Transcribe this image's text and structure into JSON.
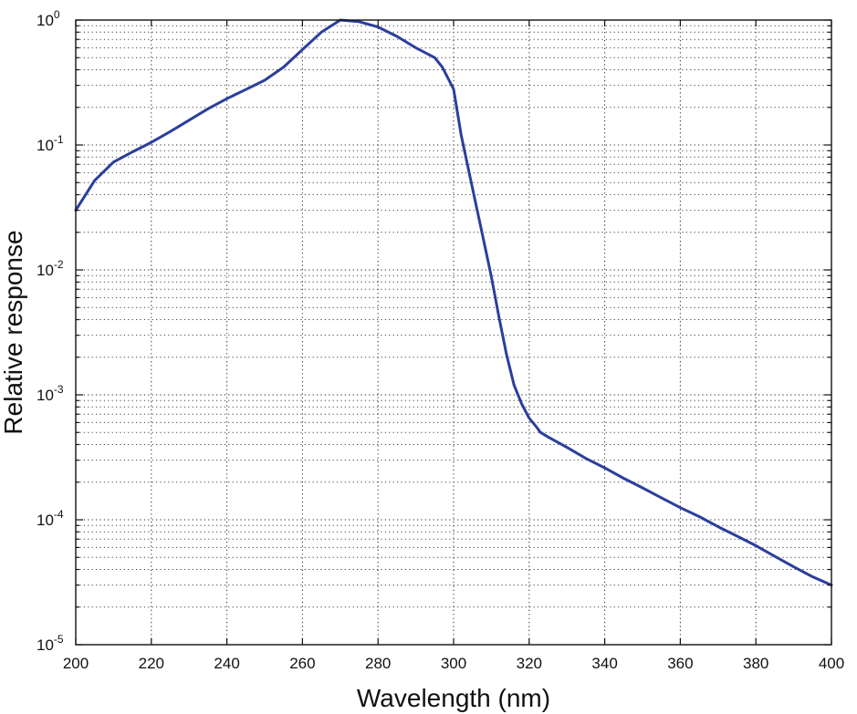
{
  "chart_data": {
    "type": "line",
    "title": "",
    "xlabel": "Wavelength (nm)",
    "ylabel": "Relative response",
    "xlim": [
      200,
      400
    ],
    "ylim": [
      1e-05,
      1
    ],
    "yscale": "log",
    "grid": true,
    "x_ticks": [
      {
        "value": 200,
        "label": "200"
      },
      {
        "value": 220,
        "label": "220"
      },
      {
        "value": 240,
        "label": "240"
      },
      {
        "value": 260,
        "label": "260"
      },
      {
        "value": 280,
        "label": "280"
      },
      {
        "value": 300,
        "label": "300"
      },
      {
        "value": 320,
        "label": "320"
      },
      {
        "value": 340,
        "label": "340"
      },
      {
        "value": 360,
        "label": "360"
      },
      {
        "value": 380,
        "label": "380"
      },
      {
        "value": 400,
        "label": "400"
      }
    ],
    "y_ticks": [
      {
        "value": 1,
        "base": "10",
        "exp": "0"
      },
      {
        "value": 0.1,
        "base": "10",
        "exp": "-1"
      },
      {
        "value": 0.01,
        "base": "10",
        "exp": "-2"
      },
      {
        "value": 0.001,
        "base": "10",
        "exp": "-3"
      },
      {
        "value": 0.0001,
        "base": "10",
        "exp": "-4"
      },
      {
        "value": 1e-05,
        "base": "10",
        "exp": "-5"
      }
    ],
    "series": [
      {
        "color": "#2a3f9c",
        "x": [
          200,
          205,
          210,
          215,
          220,
          225,
          230,
          235,
          240,
          245,
          250,
          255,
          260,
          265,
          270,
          275,
          280,
          285,
          290,
          295,
          297,
          300,
          302,
          305,
          308,
          310,
          312,
          314,
          316,
          318,
          320,
          322,
          323,
          325,
          330,
          335,
          340,
          345,
          350,
          355,
          360,
          365,
          370,
          375,
          380,
          385,
          390,
          395,
          400
        ],
        "y": [
          0.03,
          0.052,
          0.073,
          0.088,
          0.105,
          0.128,
          0.158,
          0.195,
          0.235,
          0.278,
          0.33,
          0.42,
          0.58,
          0.8,
          1.0,
          0.97,
          0.88,
          0.74,
          0.6,
          0.5,
          0.42,
          0.28,
          0.12,
          0.045,
          0.017,
          0.0088,
          0.0042,
          0.0021,
          0.0012,
          0.00085,
          0.00065,
          0.00055,
          0.0005,
          0.00046,
          0.00038,
          0.00031,
          0.00026,
          0.000215,
          0.00018,
          0.00015,
          0.000125,
          0.000106,
          8.8e-05,
          7.4e-05,
          6.2e-05,
          5.1e-05,
          4.2e-05,
          3.5e-05,
          3e-05
        ]
      }
    ]
  }
}
